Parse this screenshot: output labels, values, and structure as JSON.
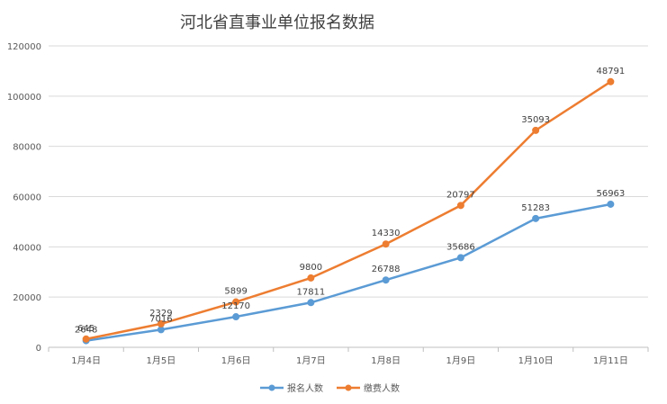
{
  "chart_data": {
    "type": "line",
    "title": "河北省直事业单位报名数据",
    "categories": [
      "1月4日",
      "1月5日",
      "1月6日",
      "1月7日",
      "1月8日",
      "1月9日",
      "1月10日",
      "1月11日"
    ],
    "ylim": [
      0,
      120000
    ],
    "yticks": [
      0,
      20000,
      40000,
      60000,
      80000,
      100000,
      120000
    ],
    "grid": true,
    "legend_position": "bottom",
    "series": [
      {
        "name": "报名人数",
        "color": "#5B9BD5",
        "values": [
          2648,
          7016,
          12170,
          17811,
          26788,
          35686,
          51283,
          56963
        ],
        "labels": [
          "2648",
          "7016",
          "12170",
          "17811",
          "26788",
          "35686",
          "51283",
          "56963"
        ]
      },
      {
        "name": "缴费人数",
        "color": "#ED7D31",
        "values": [
          3302,
          9345,
          18069,
          27611,
          41118,
          56483,
          86376,
          105754
        ],
        "labels": [
          "645",
          "2329",
          "5899",
          "9800",
          "14330",
          "20797",
          "35093",
          "48791"
        ]
      }
    ]
  }
}
